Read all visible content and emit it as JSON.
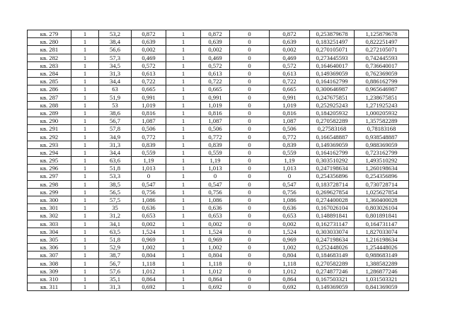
{
  "rows": [
    [
      "кв. 279",
      "1",
      "53,2",
      "0,872",
      "1",
      "0,872",
      "0",
      "0,872",
      "0,253879678",
      "1,125879678"
    ],
    [
      "кв. 280",
      "1",
      "38,4",
      "0,639",
      "1",
      "0,639",
      "0",
      "0,639",
      "0,183251497",
      "0,822251497"
    ],
    [
      "кв. 281",
      "1",
      "56,6",
      "0,002",
      "1",
      "0,002",
      "0",
      "0,002",
      "0,270105071",
      "0,272105071"
    ],
    [
      "кв. 282",
      "1",
      "57,3",
      "0,469",
      "1",
      "0,469",
      "0",
      "0,469",
      "0,273445593",
      "0,742445593"
    ],
    [
      "кв. 283",
      "1",
      "34,5",
      "0,572",
      "1",
      "0,572",
      "0",
      "0,572",
      "0,164640017",
      "0,736640017"
    ],
    [
      "кв. 284",
      "1",
      "31,3",
      "0,613",
      "1",
      "0,613",
      "0",
      "0,613",
      "0,149369059",
      "0,762369059"
    ],
    [
      "кв. 285",
      "1",
      "34,4",
      "0,722",
      "1",
      "0,722",
      "0",
      "0,722",
      "0,164162799",
      "0,886162799"
    ],
    [
      "кв. 286",
      "1",
      "63",
      "0,665",
      "1",
      "0,665",
      "0",
      "0,665",
      "0,300646987",
      "0,965646987"
    ],
    [
      "кв. 287",
      "1",
      "51,9",
      "0,991",
      "1",
      "0,991",
      "0",
      "0,991",
      "0,247675851",
      "1,238675851"
    ],
    [
      "кв. 288",
      "1",
      "53",
      "1,019",
      "1",
      "1,019",
      "0",
      "1,019",
      "0,252925243",
      "1,271925243"
    ],
    [
      "кв. 289",
      "1",
      "38,6",
      "0,816",
      "1",
      "0,816",
      "0",
      "0,816",
      "0,184205932",
      "1,000205932"
    ],
    [
      "кв. 290",
      "1",
      "56,7",
      "1,087",
      "1",
      "1,087",
      "0",
      "1,087",
      "0,270582289",
      "1,357582289"
    ],
    [
      "кв. 291",
      "1",
      "57,8",
      "0,506",
      "1",
      "0,506",
      "0",
      "0,506",
      "0,27583168",
      "0,78183168"
    ],
    [
      "кв. 292",
      "1",
      "34,9",
      "0,772",
      "1",
      "0,772",
      "0",
      "0,772",
      "0,166548887",
      "0,938548887"
    ],
    [
      "кв. 293",
      "1",
      "31,3",
      "0,839",
      "1",
      "0,839",
      "0",
      "0,839",
      "0,149369059",
      "0,988369059"
    ],
    [
      "кв. 294",
      "1",
      "34,4",
      "0,559",
      "1",
      "0,559",
      "0",
      "0,559",
      "0,164162799",
      "0,723162799"
    ],
    [
      "кв. 295",
      "1",
      "63,6",
      "1,19",
      "1",
      "1,19",
      "0",
      "1,19",
      "0,303510292",
      "1,493510292"
    ],
    [
      "кв. 296",
      "1",
      "51,8",
      "1,013",
      "1",
      "1,013",
      "0",
      "1,013",
      "0,247198634",
      "1,260198634"
    ],
    [
      "кв. 297",
      "1",
      "53,3",
      "0",
      "1",
      "0",
      "0",
      "0",
      "0,254356896",
      "0,254356896"
    ],
    [
      "кв. 298",
      "1",
      "38,5",
      "0,547",
      "1",
      "0,547",
      "0",
      "0,547",
      "0,183728714",
      "0,730728714"
    ],
    [
      "кв. 299",
      "1",
      "56,5",
      "0,756",
      "1",
      "0,756",
      "0",
      "0,756",
      "0,269627854",
      "1,025627854"
    ],
    [
      "кв. 300",
      "1",
      "57,5",
      "1,086",
      "1",
      "1,086",
      "0",
      "1,086",
      "0,274400028",
      "1,360400028"
    ],
    [
      "кв. 301",
      "1",
      "35",
      "0,636",
      "1",
      "0,636",
      "0",
      "0,636",
      "0,167026104",
      "0,803026104"
    ],
    [
      "кв. 302",
      "1",
      "31,2",
      "0,653",
      "1",
      "0,653",
      "0",
      "0,653",
      "0,148891841",
      "0,801891841"
    ],
    [
      "кв. 303",
      "1",
      "34,1",
      "0,002",
      "1",
      "0,002",
      "0",
      "0,002",
      "0,162731147",
      "0,164731147"
    ],
    [
      "кв. 304",
      "1",
      "63,5",
      "1,524",
      "1",
      "1,524",
      "0",
      "1,524",
      "0,303033074",
      "1,827033074"
    ],
    [
      "кв. 305",
      "1",
      "51,8",
      "0,969",
      "1",
      "0,969",
      "0",
      "0,969",
      "0,247198634",
      "1,216198634"
    ],
    [
      "кв. 306",
      "1",
      "52,9",
      "1,002",
      "1",
      "1,002",
      "0",
      "1,002",
      "0,252448026",
      "1,254448026"
    ],
    [
      "кв. 307",
      "1",
      "38,7",
      "0,804",
      "1",
      "0,804",
      "0",
      "0,804",
      "0,184683149",
      "0,988683149"
    ],
    [
      "кв. 308",
      "1",
      "56,7",
      "1,118",
      "1",
      "1,118",
      "0",
      "1,118",
      "0,270582289",
      "1,388582289"
    ],
    [
      "кв. 309",
      "1",
      "57,6",
      "1,012",
      "1",
      "1,012",
      "0",
      "1,012",
      "0,274877246",
      "1,286877246"
    ],
    [
      "кв. 310",
      "1",
      "35,1",
      "0,864",
      "1",
      "0,864",
      "0",
      "0,864",
      "0,167503321",
      "1,031503321"
    ],
    [
      "кв. 311",
      "1",
      "31,3",
      "0,692",
      "1",
      "0,692",
      "0",
      "0,692",
      "0,149369059",
      "0,841369059"
    ]
  ]
}
